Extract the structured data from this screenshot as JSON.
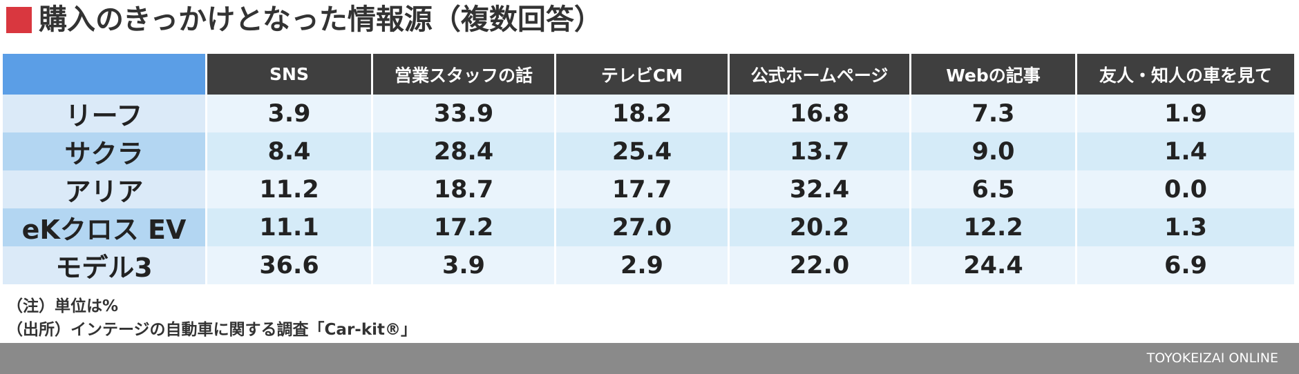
{
  "header": {
    "title": "購入のきっかけとなった情報源（複数回答）"
  },
  "table": {
    "columns": [
      "SNS",
      "営業スタッフの話",
      "テレビCM",
      "公式ホームページ",
      "Webの記事",
      "友人・知人の車を見て"
    ],
    "rows": [
      {
        "label": "リーフ",
        "values": [
          "3.9",
          "33.9",
          "18.2",
          "16.8",
          "7.3",
          "1.9"
        ]
      },
      {
        "label": "サクラ",
        "values": [
          "8.4",
          "28.4",
          "25.4",
          "13.7",
          "9.0",
          "1.4"
        ]
      },
      {
        "label": "アリア",
        "values": [
          "11.2",
          "18.7",
          "17.7",
          "32.4",
          "6.5",
          "0.0"
        ]
      },
      {
        "label": "eKクロス EV",
        "values": [
          "11.1",
          "17.2",
          "27.0",
          "20.2",
          "12.2",
          "1.3"
        ]
      },
      {
        "label": "モデル3",
        "values": [
          "36.6",
          "3.9",
          "2.9",
          "22.0",
          "24.4",
          "6.9"
        ]
      }
    ]
  },
  "notes": [
    "（注）単位は%",
    "（出所）インテージの自動車に関する調査「Car-kit®」"
  ],
  "footer": {
    "brand": "TOYOKEIZAI ONLINE"
  }
}
